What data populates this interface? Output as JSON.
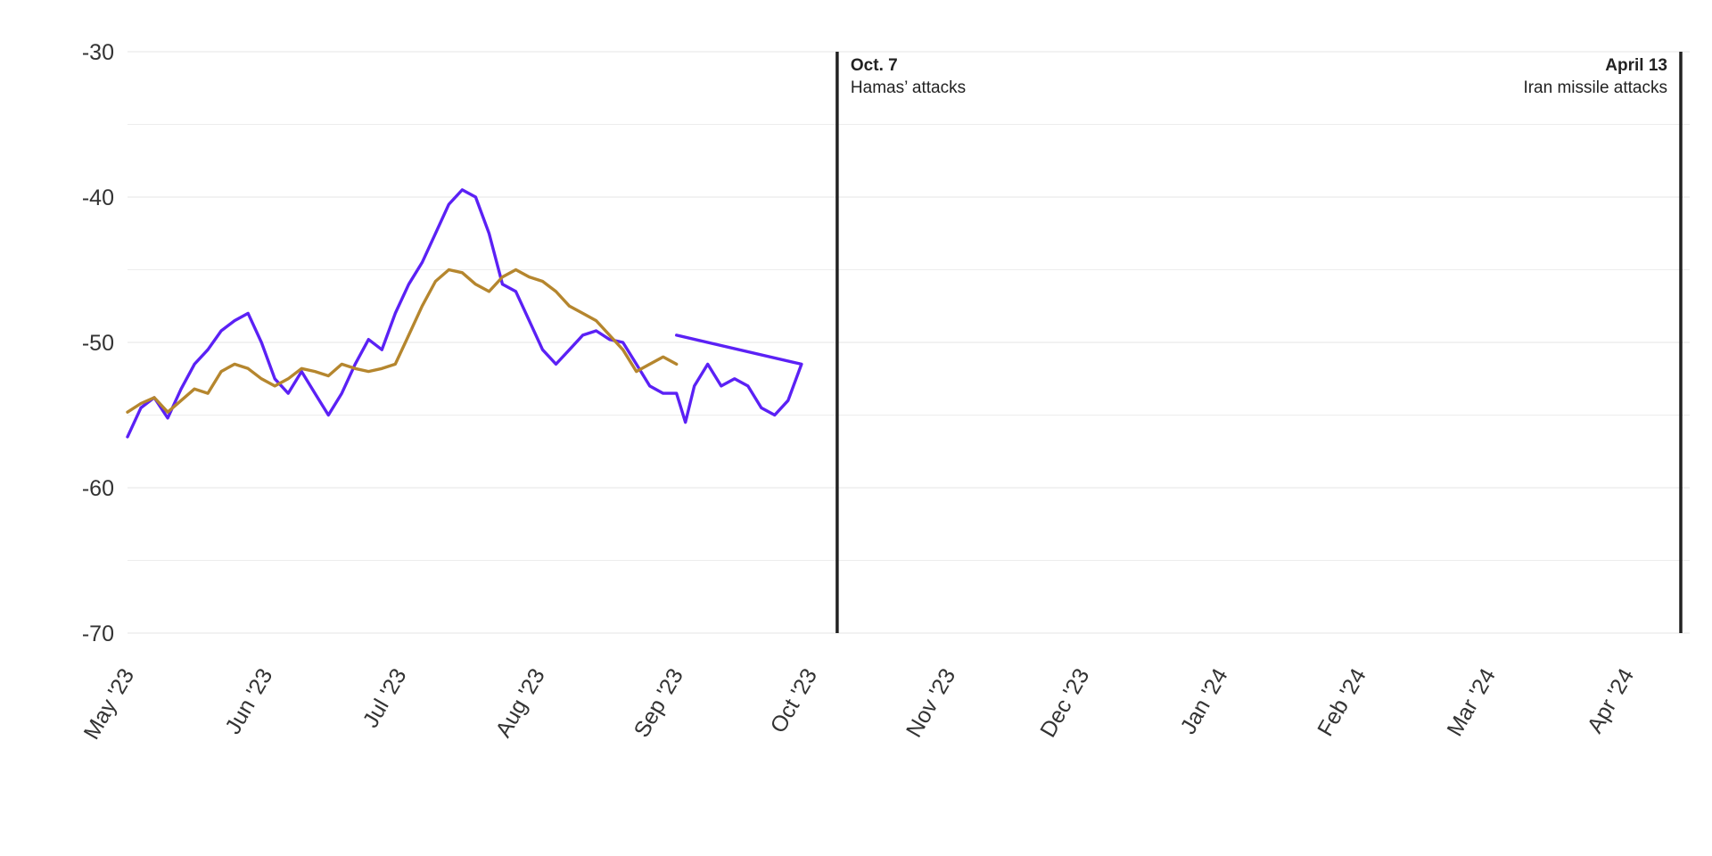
{
  "chart_data": {
    "type": "line",
    "title": "",
    "xlabel": "",
    "ylabel": "",
    "x_range": [
      "2023-05-01",
      "2024-04-15"
    ],
    "ylim": [
      -70,
      -30
    ],
    "grid": true,
    "y_ticks": [
      {
        "value": -30,
        "label": "-30"
      },
      {
        "value": -40,
        "label": "-40"
      },
      {
        "value": -50,
        "label": "-50"
      },
      {
        "value": -60,
        "label": "-60"
      },
      {
        "value": -70,
        "label": "-70"
      }
    ],
    "y_minor_gridlines": [
      -35,
      -45,
      -55,
      -65
    ],
    "x_ticks": [
      {
        "date": "2023-05-01",
        "label": "May '23"
      },
      {
        "date": "2023-06-01",
        "label": "Jun '23"
      },
      {
        "date": "2023-07-01",
        "label": "Jul '23"
      },
      {
        "date": "2023-08-01",
        "label": "Aug '23"
      },
      {
        "date": "2023-09-01",
        "label": "Sep '23"
      },
      {
        "date": "2023-10-01",
        "label": "Oct '23"
      },
      {
        "date": "2023-11-01",
        "label": "Nov '23"
      },
      {
        "date": "2023-12-01",
        "label": "Dec '23"
      },
      {
        "date": "2024-01-01",
        "label": "Jan '24"
      },
      {
        "date": "2024-02-01",
        "label": "Feb '24"
      },
      {
        "date": "2024-03-01",
        "label": "Mar '24"
      },
      {
        "date": "2024-04-01",
        "label": "Apr '24"
      }
    ],
    "annotations": [
      {
        "date": "2023-10-07",
        "title": "Oct. 7",
        "text": "Hamas’ attacks",
        "align": "left"
      },
      {
        "date": "2024-04-13",
        "title": "April 13",
        "text": "Iran missile attacks",
        "align": "right"
      }
    ],
    "series": [
      {
        "color": "#5b21f5",
        "points": [
          [
            "2023-05-01",
            -56.5
          ],
          [
            "2023-05-04",
            -54.5
          ],
          [
            "2023-05-07",
            -53.8
          ],
          [
            "2023-05-10",
            -55.2
          ],
          [
            "2023-05-13",
            -53.2
          ],
          [
            "2023-05-16",
            -51.5
          ],
          [
            "2023-05-19",
            -50.5
          ],
          [
            "2023-05-22",
            -49.2
          ],
          [
            "2023-05-25",
            -48.5
          ],
          [
            "2023-05-28",
            -48.0
          ],
          [
            "2023-05-31",
            -50.0
          ],
          [
            "2023-06-03",
            -52.5
          ],
          [
            "2023-06-06",
            -53.5
          ],
          [
            "2023-06-09",
            -52.0
          ],
          [
            "2023-06-12",
            -53.5
          ],
          [
            "2023-06-15",
            -55.0
          ],
          [
            "2023-06-18",
            -53.5
          ],
          [
            "2023-06-21",
            -51.5
          ],
          [
            "2023-06-24",
            -49.8
          ],
          [
            "2023-06-27",
            -50.5
          ],
          [
            "2023-06-30",
            -48.0
          ],
          [
            "2023-07-03",
            -46.0
          ],
          [
            "2023-07-06",
            -44.5
          ],
          [
            "2023-07-09",
            -42.5
          ],
          [
            "2023-07-12",
            -40.5
          ],
          [
            "2023-07-15",
            -39.5
          ],
          [
            "2023-07-18",
            -40.0
          ],
          [
            "2023-07-21",
            -42.5
          ],
          [
            "2023-07-24",
            -46.0
          ],
          [
            "2023-07-27",
            -46.5
          ],
          [
            "2023-07-30",
            -48.5
          ],
          [
            "2023-08-02",
            -50.5
          ],
          [
            "2023-08-05",
            -51.5
          ],
          [
            "2023-08-08",
            -50.5
          ],
          [
            "2023-08-11",
            -49.5
          ],
          [
            "2023-08-14",
            -49.2
          ],
          [
            "2023-08-17",
            -49.8
          ],
          [
            "2023-08-20",
            -50.0
          ],
          [
            "2023-08-23",
            -51.5
          ],
          [
            "2023-08-26",
            -53.0
          ],
          [
            "2023-08-29",
            -53.5
          ],
          [
            "2023-09-01",
            -53.5
          ],
          [
            "2023-09-03",
            -55.5
          ],
          [
            "2023-09-05",
            -53.0
          ],
          [
            "2023-09-08",
            -51.5
          ],
          [
            "2023-09-11",
            -53.0
          ],
          [
            "2023-09-14",
            -52.5
          ],
          [
            "2023-09-17",
            -53.0
          ],
          [
            "2023-09-20",
            -54.5
          ],
          [
            "2023-09-23",
            -55.0
          ],
          [
            "2023-09-26",
            -54.0
          ],
          [
            "2023-09-29",
            -51.5
          ],
          [
            "2023-09-01",
            -49.5
          ]
        ]
      },
      {
        "color": "#b5862e",
        "points": [
          [
            "2023-05-01",
            -54.8
          ],
          [
            "2023-05-04",
            -54.2
          ],
          [
            "2023-05-07",
            -53.8
          ],
          [
            "2023-05-10",
            -54.8
          ],
          [
            "2023-05-13",
            -54.0
          ],
          [
            "2023-05-16",
            -53.2
          ],
          [
            "2023-05-19",
            -53.5
          ],
          [
            "2023-05-22",
            -52.0
          ],
          [
            "2023-05-25",
            -51.5
          ],
          [
            "2023-05-28",
            -51.8
          ],
          [
            "2023-05-31",
            -52.5
          ],
          [
            "2023-06-03",
            -53.0
          ],
          [
            "2023-06-06",
            -52.5
          ],
          [
            "2023-06-09",
            -51.8
          ],
          [
            "2023-06-12",
            -52.0
          ],
          [
            "2023-06-15",
            -52.3
          ],
          [
            "2023-06-18",
            -51.5
          ],
          [
            "2023-06-21",
            -51.8
          ],
          [
            "2023-06-24",
            -52.0
          ],
          [
            "2023-06-27",
            -51.8
          ],
          [
            "2023-06-30",
            -51.5
          ],
          [
            "2023-07-03",
            -49.5
          ],
          [
            "2023-07-06",
            -47.5
          ],
          [
            "2023-07-09",
            -45.8
          ],
          [
            "2023-07-12",
            -45.0
          ],
          [
            "2023-07-15",
            -45.2
          ],
          [
            "2023-07-18",
            -46.0
          ],
          [
            "2023-07-21",
            -46.5
          ],
          [
            "2023-07-24",
            -45.5
          ],
          [
            "2023-07-27",
            -45.0
          ],
          [
            "2023-07-30",
            -45.5
          ],
          [
            "2023-08-02",
            -45.8
          ],
          [
            "2023-08-05",
            -46.5
          ],
          [
            "2023-08-08",
            -47.5
          ],
          [
            "2023-08-11",
            -48.0
          ],
          [
            "2023-08-14",
            -48.5
          ],
          [
            "2023-08-17",
            -49.5
          ],
          [
            "2023-08-20",
            -50.5
          ],
          [
            "2023-08-23",
            -52.0
          ],
          [
            "2023-08-26",
            -51.5
          ],
          [
            "2023-08-29",
            -51.0
          ],
          [
            "2023-09-01",
            -51.5
          ]
        ]
      }
    ]
  }
}
